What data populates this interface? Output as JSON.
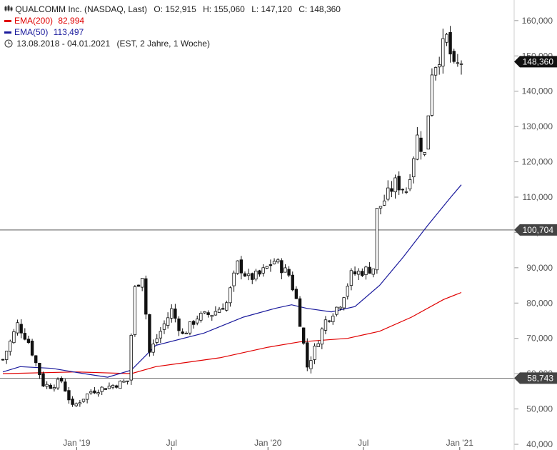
{
  "chart_data": {
    "type": "candlestick",
    "title": "QUALCOMM Inc. (NASDAQ, Last)",
    "ohlc_summary": {
      "open": "O: 152,915",
      "high": "H: 155,060",
      "low": "L: 147,120",
      "close": "C: 148,360"
    },
    "period": "13.08.2018 - 04.01.2021",
    "period_note": "(EST, 2 Jahre, 1 Woche)",
    "legend": [
      {
        "name": "EMA(200)",
        "value": "82,994",
        "color": "#e00000"
      },
      {
        "name": "EMA(50)",
        "value": "113,497",
        "color": "#1a1a9c"
      }
    ],
    "ylim": [
      40000,
      163000
    ],
    "y_ticks": [
      {
        "v": 160000,
        "label": "160,000"
      },
      {
        "v": 150000,
        "label": "150,000"
      },
      {
        "v": 140000,
        "label": "140,000"
      },
      {
        "v": 130000,
        "label": "130,000"
      },
      {
        "v": 120000,
        "label": "120,000"
      },
      {
        "v": 110000,
        "label": "110,000"
      },
      {
        "v": 100000,
        "label": "100,000"
      },
      {
        "v": 90000,
        "label": "90,000"
      },
      {
        "v": 80000,
        "label": "80,000"
      },
      {
        "v": 70000,
        "label": "70,000"
      },
      {
        "v": 60000,
        "label": "60,000"
      },
      {
        "v": 50000,
        "label": "50,000"
      },
      {
        "v": 40000,
        "label": "40,000"
      }
    ],
    "x_ticks": [
      {
        "date": "2019-01-01",
        "label": "Jan '19"
      },
      {
        "date": "2019-07-01",
        "label": "Jul"
      },
      {
        "date": "2020-01-01",
        "label": "Jan '20"
      },
      {
        "date": "2020-07-01",
        "label": "Jul"
      },
      {
        "date": "2021-01-01",
        "label": "Jan '21"
      }
    ],
    "hlines": [
      {
        "v": 100704,
        "label": "100,704",
        "color": "#444444"
      },
      {
        "v": 58743,
        "label": "58,743",
        "color": "#444444"
      }
    ],
    "last_price": {
      "v": 148360,
      "label": "148,360",
      "color": "#111111"
    },
    "anchors": [
      [
        "2018-08-13",
        64000
      ],
      [
        "2018-09-10",
        74000
      ],
      [
        "2018-10-01",
        69000
      ],
      [
        "2018-10-29",
        57000
      ],
      [
        "2018-11-12",
        56500
      ],
      [
        "2018-12-03",
        58000
      ],
      [
        "2018-12-24",
        50500
      ],
      [
        "2019-01-28",
        55000
      ],
      [
        "2019-03-18",
        57000
      ],
      [
        "2019-04-08",
        58000
      ],
      [
        "2019-04-22",
        84000
      ],
      [
        "2019-05-06",
        88000
      ],
      [
        "2019-05-20",
        66000
      ],
      [
        "2019-06-10",
        72000
      ],
      [
        "2019-07-01",
        78000
      ],
      [
        "2019-07-22",
        71000
      ],
      [
        "2019-08-19",
        76000
      ],
      [
        "2019-09-16",
        77000
      ],
      [
        "2019-10-14",
        80000
      ],
      [
        "2019-11-04",
        91000
      ],
      [
        "2019-11-25",
        87000
      ],
      [
        "2019-12-16",
        88000
      ],
      [
        "2020-01-13",
        92000
      ],
      [
        "2020-02-10",
        88000
      ],
      [
        "2020-02-24",
        81000
      ],
      [
        "2020-03-16",
        62000
      ],
      [
        "2020-03-30",
        67000
      ],
      [
        "2020-04-20",
        75000
      ],
      [
        "2020-05-18",
        80000
      ],
      [
        "2020-06-08",
        88000
      ],
      [
        "2020-06-29",
        89000
      ],
      [
        "2020-07-20",
        90000
      ],
      [
        "2020-07-27",
        106000
      ],
      [
        "2020-08-31",
        114000
      ],
      [
        "2020-09-21",
        112000
      ],
      [
        "2020-10-12",
        127000
      ],
      [
        "2020-10-26",
        122000
      ],
      [
        "2020-11-09",
        146000
      ],
      [
        "2020-11-23",
        150000
      ],
      [
        "2020-12-07",
        155000
      ],
      [
        "2020-12-21",
        146000
      ],
      [
        "2021-01-04",
        148360
      ]
    ],
    "ema200": [
      [
        "2018-08-13",
        60000
      ],
      [
        "2018-12-31",
        60500
      ],
      [
        "2019-04-15",
        60000
      ],
      [
        "2019-06-01",
        62000
      ],
      [
        "2019-10-01",
        64500
      ],
      [
        "2020-01-01",
        67500
      ],
      [
        "2020-03-01",
        69000
      ],
      [
        "2020-06-01",
        70000
      ],
      [
        "2020-08-01",
        72000
      ],
      [
        "2020-10-01",
        76000
      ],
      [
        "2020-12-01",
        81000
      ],
      [
        "2021-01-04",
        82994
      ]
    ],
    "ema50": [
      [
        "2018-08-13",
        60500
      ],
      [
        "2018-09-15",
        62000
      ],
      [
        "2018-11-15",
        61500
      ],
      [
        "2019-01-15",
        60000
      ],
      [
        "2019-03-01",
        59000
      ],
      [
        "2019-04-15",
        61000
      ],
      [
        "2019-06-01",
        68000
      ],
      [
        "2019-09-01",
        71500
      ],
      [
        "2019-11-15",
        76000
      ],
      [
        "2020-01-15",
        78500
      ],
      [
        "2020-02-15",
        79500
      ],
      [
        "2020-03-15",
        78500
      ],
      [
        "2020-05-01",
        77500
      ],
      [
        "2020-06-15",
        79000
      ],
      [
        "2020-08-01",
        85000
      ],
      [
        "2020-09-15",
        93000
      ],
      [
        "2020-11-01",
        102000
      ],
      [
        "2020-12-15",
        110000
      ],
      [
        "2021-01-04",
        113497
      ]
    ]
  }
}
